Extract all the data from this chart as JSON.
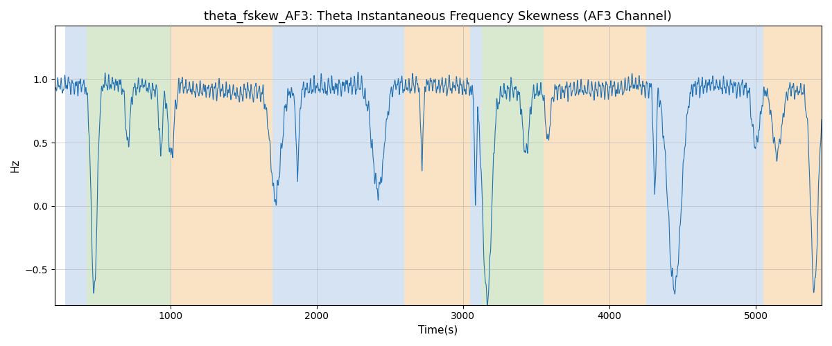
{
  "title": "theta_fskew_AF3: Theta Instantaneous Frequency Skewness (AF3 Channel)",
  "xlabel": "Time(s)",
  "ylabel": "Hz",
  "xlim": [
    210,
    5450
  ],
  "ylim": [
    -0.78,
    1.42
  ],
  "yticks": [
    -0.5,
    0.0,
    0.5,
    1.0
  ],
  "line_color": "#2070b4",
  "line_width": 0.8,
  "background_regions": [
    {
      "xmin": 280,
      "xmax": 430,
      "color": "#adc8e8",
      "alpha": 0.5
    },
    {
      "xmin": 430,
      "xmax": 1000,
      "color": "#b2d4a0",
      "alpha": 0.5
    },
    {
      "xmin": 1000,
      "xmax": 1700,
      "color": "#f5c88a",
      "alpha": 0.5
    },
    {
      "xmin": 1700,
      "xmax": 2600,
      "color": "#adc8e8",
      "alpha": 0.5
    },
    {
      "xmin": 2600,
      "xmax": 3050,
      "color": "#f5c88a",
      "alpha": 0.5
    },
    {
      "xmin": 3050,
      "xmax": 3130,
      "color": "#adc8e8",
      "alpha": 0.5
    },
    {
      "xmin": 3130,
      "xmax": 3550,
      "color": "#b2d4a0",
      "alpha": 0.5
    },
    {
      "xmin": 3550,
      "xmax": 4250,
      "color": "#f5c88a",
      "alpha": 0.5
    },
    {
      "xmin": 4250,
      "xmax": 5050,
      "color": "#adc8e8",
      "alpha": 0.5
    },
    {
      "xmin": 5050,
      "xmax": 5450,
      "color": "#f5c88a",
      "alpha": 0.5
    }
  ],
  "grid_color": "#aaaaaa",
  "grid_alpha": 0.5,
  "grid_linewidth": 0.7,
  "title_fontsize": 13,
  "label_fontsize": 11,
  "tick_fontsize": 10,
  "seed": 42,
  "n_points": 5200
}
